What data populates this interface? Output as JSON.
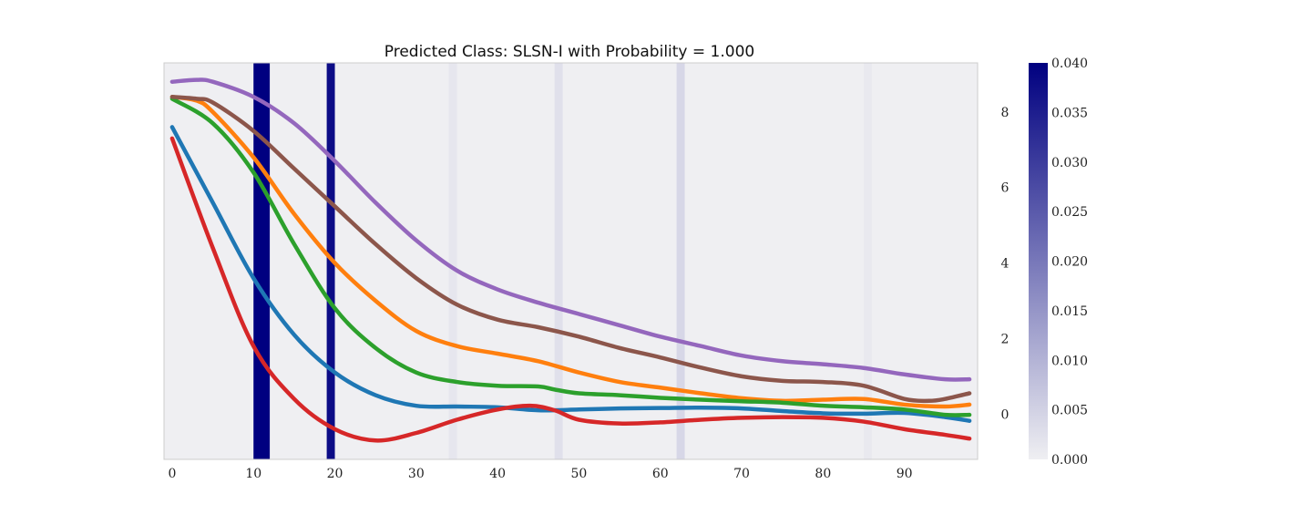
{
  "chart_data": {
    "type": "line",
    "title": "Predicted Class: SLSN-I with Probability = 1.000",
    "xlabel": "",
    "ylabel": "",
    "xlim": [
      -1,
      99
    ],
    "ylim": [
      -1.2,
      9.3
    ],
    "x_ticks": [
      0,
      10,
      20,
      30,
      40,
      50,
      60,
      70,
      80,
      90
    ],
    "y_ticks": [
      0,
      2,
      4,
      6,
      8
    ],
    "y_axis_side": "right",
    "grid": false,
    "background_color": "#efeff2",
    "x_tick_labels": [
      "0",
      "10",
      "20",
      "30",
      "40",
      "50",
      "60",
      "70",
      "80",
      "90"
    ],
    "y_tick_labels": [
      "0",
      "2",
      "4",
      "6",
      "8"
    ],
    "series": [
      {
        "color": "#1f77b4",
        "x": [
          0,
          5,
          10,
          15,
          20,
          25,
          30,
          35,
          40,
          45,
          50,
          55,
          60,
          65,
          70,
          75,
          80,
          85,
          90,
          95,
          98
        ],
        "values": [
          7.6,
          5.6,
          3.6,
          2.1,
          1.1,
          0.5,
          0.22,
          0.2,
          0.18,
          0.1,
          0.12,
          0.15,
          0.16,
          0.17,
          0.15,
          0.08,
          0.02,
          0.01,
          0.03,
          -0.08,
          -0.18
        ]
      },
      {
        "color": "#ff7f0e",
        "x": [
          0,
          3,
          5,
          10,
          15,
          20,
          25,
          30,
          35,
          40,
          45,
          50,
          55,
          60,
          65,
          70,
          75,
          80,
          85,
          90,
          95,
          98
        ],
        "values": [
          8.4,
          8.3,
          8.0,
          6.8,
          5.3,
          4.0,
          3.0,
          2.2,
          1.8,
          1.6,
          1.4,
          1.1,
          0.85,
          0.7,
          0.55,
          0.42,
          0.35,
          0.38,
          0.4,
          0.25,
          0.2,
          0.25
        ]
      },
      {
        "color": "#2ca02c",
        "x": [
          0,
          5,
          10,
          15,
          20,
          25,
          30,
          35,
          40,
          45,
          47,
          50,
          55,
          60,
          65,
          70,
          75,
          80,
          85,
          90,
          95,
          98
        ],
        "values": [
          8.35,
          7.7,
          6.4,
          4.5,
          2.8,
          1.75,
          1.1,
          0.85,
          0.75,
          0.73,
          0.65,
          0.55,
          0.5,
          0.43,
          0.38,
          0.34,
          0.3,
          0.22,
          0.18,
          0.12,
          -0.02,
          -0.02
        ]
      },
      {
        "color": "#d62728",
        "x": [
          0,
          5,
          10,
          15,
          20,
          25,
          30,
          35,
          40,
          44,
          47,
          50,
          55,
          60,
          65,
          70,
          75,
          80,
          85,
          90,
          95,
          98
        ],
        "values": [
          7.3,
          4.4,
          1.8,
          0.4,
          -0.4,
          -0.7,
          -0.5,
          -0.15,
          0.12,
          0.22,
          0.1,
          -0.15,
          -0.25,
          -0.22,
          -0.15,
          -0.1,
          -0.08,
          -0.1,
          -0.2,
          -0.4,
          -0.55,
          -0.65
        ]
      },
      {
        "color": "#9467bd",
        "x": [
          0,
          3,
          5,
          10,
          15,
          20,
          25,
          30,
          35,
          40,
          45,
          50,
          55,
          60,
          65,
          70,
          75,
          80,
          85,
          90,
          95,
          98
        ],
        "values": [
          8.8,
          8.85,
          8.8,
          8.4,
          7.7,
          6.7,
          5.6,
          4.6,
          3.8,
          3.3,
          2.95,
          2.65,
          2.35,
          2.05,
          1.8,
          1.55,
          1.4,
          1.32,
          1.22,
          1.05,
          0.92,
          0.92
        ]
      },
      {
        "color": "#8c564b",
        "x": [
          0,
          3,
          5,
          10,
          15,
          20,
          25,
          30,
          35,
          40,
          45,
          50,
          55,
          60,
          65,
          70,
          75,
          80,
          85,
          90,
          93,
          95,
          98
        ],
        "values": [
          8.4,
          8.35,
          8.25,
          7.5,
          6.5,
          5.5,
          4.5,
          3.6,
          2.9,
          2.5,
          2.3,
          2.05,
          1.75,
          1.5,
          1.23,
          1.0,
          0.88,
          0.85,
          0.75,
          0.4,
          0.35,
          0.4,
          0.55
        ]
      }
    ],
    "attention_bands": [
      {
        "x0": 10.0,
        "x1": 12.0,
        "value": 0.04
      },
      {
        "x0": 19.0,
        "x1": 20.0,
        "value": 0.038
      },
      {
        "x0": 34.0,
        "x1": 35.0,
        "value": 0.0015
      },
      {
        "x0": 47.0,
        "x1": 48.0,
        "value": 0.0025
      },
      {
        "x0": 62.0,
        "x1": 63.0,
        "value": 0.004
      },
      {
        "x0": 85.0,
        "x1": 86.0,
        "value": 0.001
      }
    ],
    "colorbar": {
      "range": [
        0.0,
        0.04
      ],
      "ticks": [
        0.0,
        0.005,
        0.01,
        0.015,
        0.02,
        0.025,
        0.03,
        0.035,
        0.04
      ],
      "tick_labels": [
        "0.000",
        "0.005",
        "0.010",
        "0.015",
        "0.020",
        "0.025",
        "0.030",
        "0.035",
        "0.040"
      ],
      "color_low": "#efeff2",
      "color_high": "#000080"
    }
  }
}
